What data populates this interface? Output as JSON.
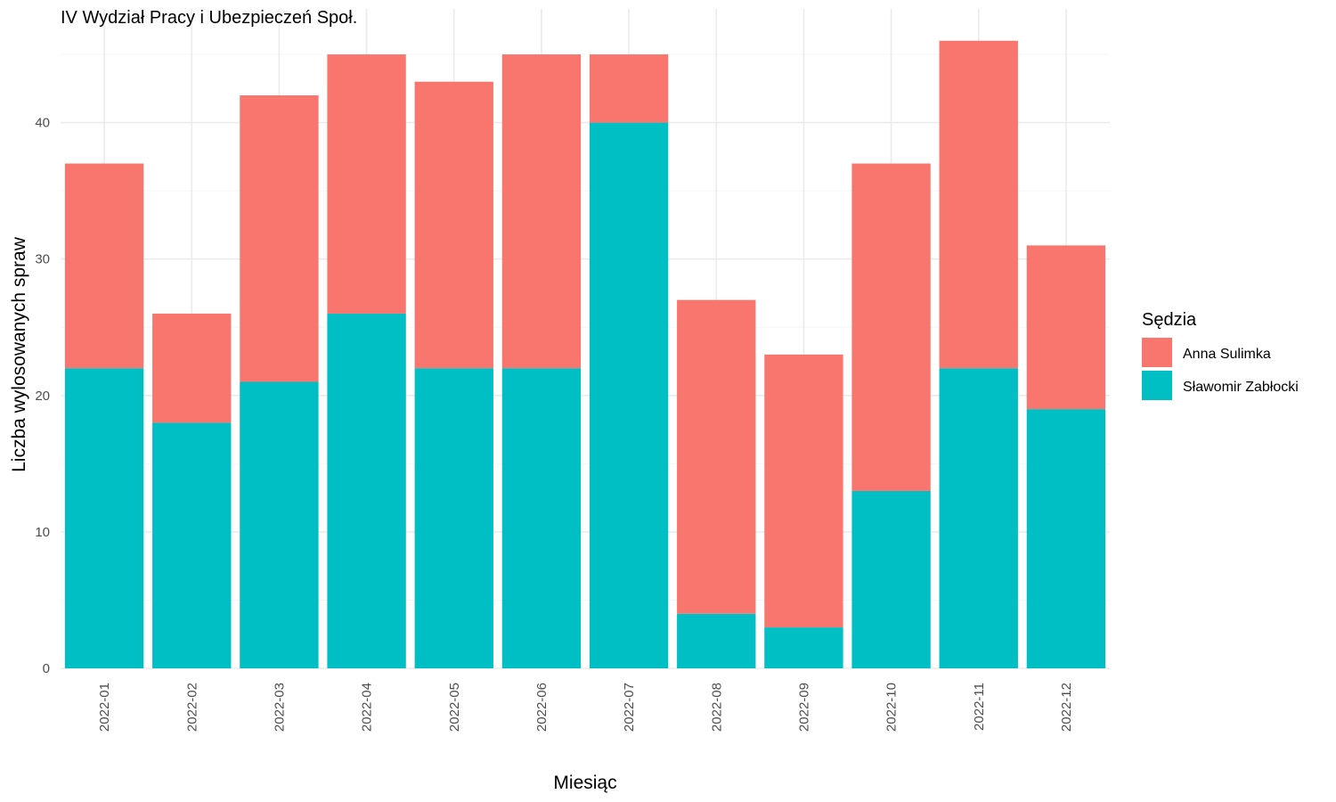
{
  "chart_data": {
    "type": "bar",
    "stacked": true,
    "title": "IV Wydział Pracy i Ubezpieczeń Społ.",
    "xlabel": "Miesiąc",
    "ylabel": "Liczba wylosowanych spraw",
    "categories": [
      "2022-01",
      "2022-02",
      "2022-03",
      "2022-04",
      "2022-05",
      "2022-06",
      "2022-07",
      "2022-08",
      "2022-09",
      "2022-10",
      "2022-11",
      "2022-12"
    ],
    "series": [
      {
        "name": "Sławomir Zabłocki",
        "color": "#00bfc4",
        "values": [
          22,
          18,
          21,
          26,
          22,
          22,
          40,
          4,
          3,
          13,
          22,
          19
        ]
      },
      {
        "name": "Anna Sulimka",
        "color": "#f8766d",
        "values": [
          15,
          8,
          21,
          19,
          21,
          23,
          5,
          23,
          20,
          24,
          24,
          12
        ]
      }
    ],
    "ylim": [
      0,
      48
    ],
    "yticks": [
      0,
      10,
      20,
      30,
      40
    ],
    "grid": true,
    "legend": {
      "title": "Sędzia",
      "position": "right",
      "entries": [
        "Anna Sulimka",
        "Sławomir Zabłocki"
      ]
    }
  }
}
